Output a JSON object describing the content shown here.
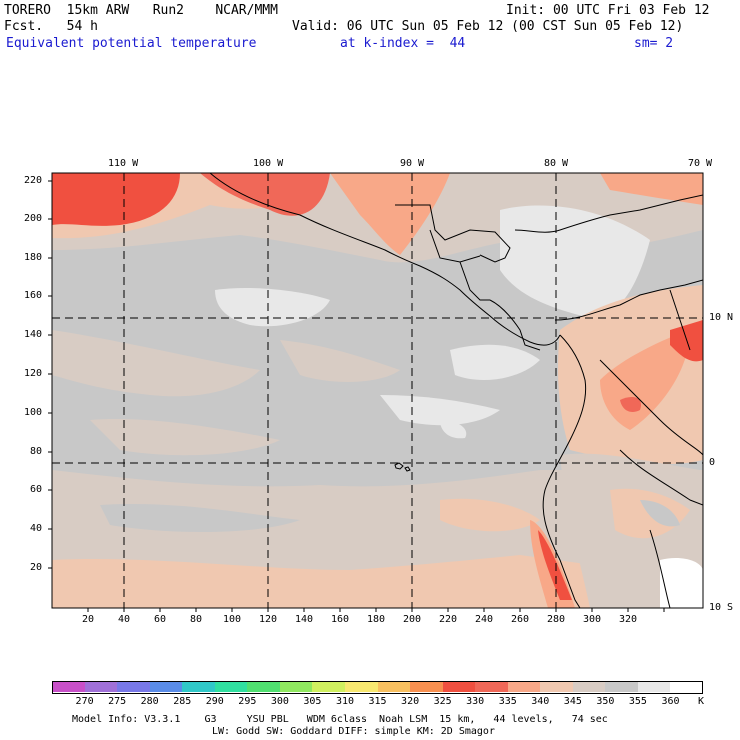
{
  "header": {
    "model": "TORERO  15km ARW   Run2    NCAR/MMM",
    "init": "Init: 00 UTC Fri 03 Feb 12",
    "fcst": "Fcst.   54 h",
    "valid": "Valid: 06 UTC Sun 05 Feb 12 (00 CST Sun 05 Feb 12)",
    "field": "Equivalent potential temperature",
    "level": "at k-index =  44",
    "smooth": "sm= 2"
  },
  "map": {
    "top_lon_labels": [
      "110 W",
      "100 W",
      "90 W",
      "80 W",
      "70 W"
    ],
    "left_y_labels": [
      "220",
      "200",
      "180",
      "160",
      "140",
      "120",
      "100",
      "80",
      "60",
      "40",
      "20"
    ],
    "bottom_x_labels": [
      "20",
      "40",
      "60",
      "80",
      "100",
      "120",
      "140",
      "160",
      "180",
      "200",
      "220",
      "240",
      "260",
      "280",
      "300",
      "320"
    ],
    "right_lat_labels": [
      "10 N",
      "0",
      "10 S"
    ]
  },
  "colorbar": {
    "levels": [
      "270",
      "275",
      "280",
      "285",
      "290",
      "295",
      "300",
      "305",
      "310",
      "315",
      "320",
      "325",
      "330",
      "335",
      "340",
      "345",
      "350",
      "355",
      "360"
    ],
    "unit": "K",
    "colors": [
      "#c850c8",
      "#a070d8",
      "#7878e8",
      "#5a8ce8",
      "#30c8c8",
      "#30e0a0",
      "#50e070",
      "#90e860",
      "#d0f060",
      "#f8e870",
      "#f8c060",
      "#f89050",
      "#f05040",
      "#f06858",
      "#f8a888",
      "#f0c8b0",
      "#d8ccc4",
      "#c8c8c8",
      "#e8e8e8",
      "#ffffff"
    ]
  },
  "footer": {
    "line1": "Model Info: V3.3.1    G3     YSU PBL   WDM 6class  Noah LSM  15 km,   44 levels,   74 sec",
    "line2": "LW: Godd SW: Goddard DIFF: simple KM: 2D Smagor"
  }
}
